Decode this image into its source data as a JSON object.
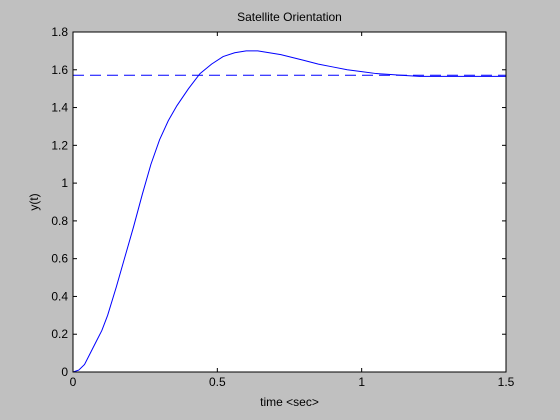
{
  "chart_data": {
    "type": "line",
    "title": "Satellite Orientation",
    "xlabel": "time <sec>",
    "ylabel": "y(t)",
    "xlim": [
      0,
      1.5
    ],
    "ylim": [
      0,
      1.8
    ],
    "x_ticks": [
      0,
      0.5,
      1,
      1.5
    ],
    "x_tick_labels": [
      "0",
      "0.5",
      "1",
      "1.5"
    ],
    "y_ticks": [
      0,
      0.2,
      0.4,
      0.6,
      0.8,
      1,
      1.2,
      1.4,
      1.6,
      1.8
    ],
    "y_tick_labels": [
      "0",
      "0.2",
      "0.4",
      "0.6",
      "0.8",
      "1",
      "1.2",
      "1.4",
      "1.6",
      "1.8"
    ],
    "grid": false,
    "series": [
      {
        "style": "solid",
        "color": "#0000ff",
        "x": [
          0,
          0.02,
          0.04,
          0.06,
          0.08,
          0.1,
          0.12,
          0.15,
          0.18,
          0.21,
          0.24,
          0.27,
          0.3,
          0.33,
          0.36,
          0.4,
          0.44,
          0.48,
          0.52,
          0.56,
          0.6,
          0.64,
          0.68,
          0.72,
          0.76,
          0.8,
          0.85,
          0.9,
          0.95,
          1.0,
          1.05,
          1.1,
          1.15,
          1.2,
          1.3,
          1.4,
          1.5
        ],
        "y": [
          0,
          0.01,
          0.04,
          0.1,
          0.16,
          0.22,
          0.3,
          0.45,
          0.61,
          0.77,
          0.94,
          1.1,
          1.23,
          1.33,
          1.41,
          1.5,
          1.58,
          1.63,
          1.67,
          1.69,
          1.7,
          1.7,
          1.69,
          1.68,
          1.665,
          1.65,
          1.63,
          1.615,
          1.6,
          1.59,
          1.58,
          1.575,
          1.57,
          1.565,
          1.565,
          1.565,
          1.565
        ]
      },
      {
        "style": "dashed",
        "color": "#0000ff",
        "x": [
          0,
          1.5
        ],
        "y": [
          1.5708,
          1.5708
        ]
      }
    ]
  }
}
